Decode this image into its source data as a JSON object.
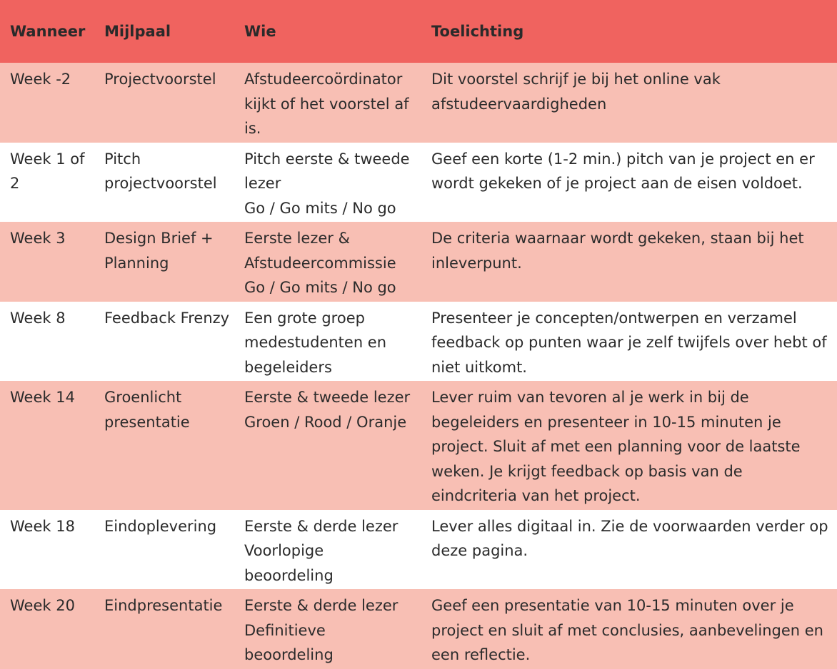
{
  "table": {
    "headers": [
      "Wanneer",
      "Mijlpaal",
      "Wie",
      "Toelichting"
    ],
    "rows": [
      {
        "wanneer": "Week -2",
        "mijlpaal": "Projectvoorstel",
        "wie": "Afstudeercoördinator kijkt of het voorstel af is.",
        "wie_extra": "",
        "toelichting": "Dit voorstel schrijf je bij het online vak afstudeervaardigheden"
      },
      {
        "wanneer": "Week 1 of 2",
        "mijlpaal": "Pitch projectvoorstel",
        "wie": "Pitch eerste & tweede lezer",
        "wie_extra": "Go / Go mits / No go",
        "toelichting": "Geef een korte (1-2 min.) pitch van je project en er wordt gekeken of je project aan de eisen voldoet."
      },
      {
        "wanneer": "Week 3",
        "mijlpaal": "Design Brief + Planning",
        "wie": "Eerste lezer & Afstudeercommissie",
        "wie_extra": "Go / Go mits / No go",
        "toelichting": "De criteria waarnaar wordt gekeken, staan bij het inleverpunt."
      },
      {
        "wanneer": "Week 8",
        "mijlpaal": "Feedback Frenzy",
        "wie": "Een grote groep medestudenten en begeleiders",
        "wie_extra": "",
        "toelichting": "Presenteer je concepten/ontwerpen en verzamel feedback op punten waar je zelf twijfels over hebt of niet uitkomt."
      },
      {
        "wanneer": "Week 14",
        "mijlpaal": "Groenlicht presentatie",
        "wie": "Eerste & tweede lezer",
        "wie_extra": "Groen / Rood / Oranje",
        "toelichting": "Lever ruim van tevoren al je werk in bij de begeleiders en presenteer in 10-15 minuten je project. Sluit af met een planning voor de laatste weken. Je krijgt feedback op basis van de eindcriteria van het project."
      },
      {
        "wanneer": "Week 18",
        "mijlpaal": "Eindoplevering",
        "wie": "Eerste & derde lezer",
        "wie_extra": "Voorlopige beoordeling",
        "toelichting": "Lever alles digitaal in. Zie de voorwaarden verder op deze pagina."
      },
      {
        "wanneer": "Week 20",
        "mijlpaal": "Eindpresentatie",
        "wie": "Eerste & derde lezer",
        "wie_extra": "Definitieve beoordeling",
        "toelichting": "Geef een presentatie van 10-15 minuten over je project en sluit af met conclusies, aanbevelingen en een reflectie."
      }
    ]
  },
  "colors": {
    "header_bg": "#f0635f",
    "odd_row_bg": "#f8bfb4",
    "even_row_bg": "#ffffff"
  }
}
